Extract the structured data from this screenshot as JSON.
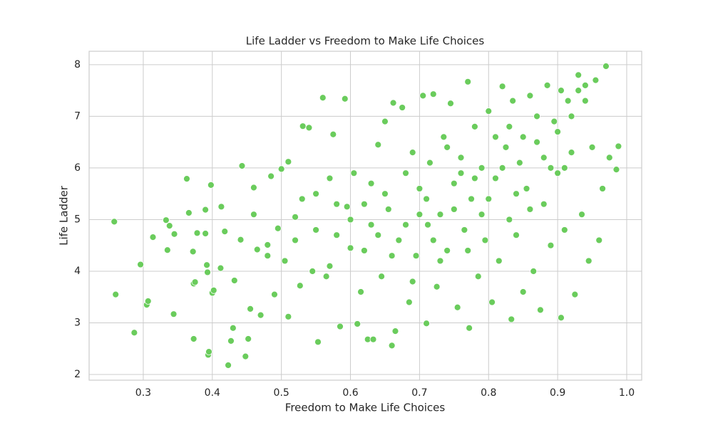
{
  "chart_data": {
    "type": "scatter",
    "title": "Life Ladder vs Freedom to Make Life Choices",
    "x_label": "Freedom to Make Life Choices",
    "y_label": "Life Ladder",
    "color": "#6acc5c",
    "grid": true,
    "xlim": [
      0.2216,
      1.0217
    ],
    "ylim": [
      1.89,
      8.26
    ],
    "xticks": [
      0.3,
      0.4,
      0.5,
      0.6,
      0.7,
      0.8,
      0.9,
      {
        "value": 1,
        "label": "1.0"
      }
    ],
    "yticks": [
      2,
      3,
      4,
      5,
      6,
      7,
      8
    ],
    "x": [
      0.258,
      0.26,
      0.287,
      0.296,
      0.305,
      0.307,
      0.314,
      0.333,
      0.335,
      0.338,
      0.344,
      0.345,
      0.363,
      0.366,
      0.372,
      0.373,
      0.373,
      0.375,
      0.378,
      0.39,
      0.39,
      0.392,
      0.393,
      0.394,
      0.395,
      0.398,
      0.4,
      0.402,
      0.412,
      0.413,
      0.418,
      0.423,
      0.427,
      0.43,
      0.432,
      0.441,
      0.443,
      0.448,
      0.452,
      0.455,
      0.46,
      0.465,
      0.47,
      0.48,
      0.485,
      0.49,
      0.495,
      0.5,
      0.505,
      0.51,
      0.51,
      0.52,
      0.527,
      0.531,
      0.54,
      0.545,
      0.55,
      0.553,
      0.56,
      0.565,
      0.57,
      0.575,
      0.58,
      0.585,
      0.592,
      0.595,
      0.6,
      0.605,
      0.61,
      0.615,
      0.62,
      0.625,
      0.63,
      0.633,
      0.64,
      0.645,
      0.65,
      0.655,
      0.66,
      0.662,
      0.665,
      0.67,
      0.675,
      0.68,
      0.685,
      0.69,
      0.695,
      0.7,
      0.705,
      0.71,
      0.712,
      0.715,
      0.72,
      0.725,
      0.73,
      0.735,
      0.74,
      0.745,
      0.75,
      0.755,
      0.76,
      0.765,
      0.77,
      0.772,
      0.775,
      0.78,
      0.785,
      0.79,
      0.795,
      0.8,
      0.805,
      0.81,
      0.815,
      0.82,
      0.825,
      0.83,
      0.833,
      0.835,
      0.84,
      0.845,
      0.85,
      0.855,
      0.86,
      0.865,
      0.87,
      0.875,
      0.88,
      0.885,
      0.89,
      0.895,
      0.9,
      0.905,
      0.905,
      0.91,
      0.915,
      0.92,
      0.925,
      0.93,
      0.935,
      0.94,
      0.945,
      0.95,
      0.955,
      0.96,
      0.965,
      0.97,
      0.975,
      0.985,
      0.988,
      0.55,
      0.6,
      0.62,
      0.65,
      0.68,
      0.7,
      0.72,
      0.75,
      0.78,
      0.8,
      0.82,
      0.85,
      0.88,
      0.9,
      0.92,
      0.87,
      0.83,
      0.76,
      0.73,
      0.66,
      0.58,
      0.52,
      0.48,
      0.46,
      0.53,
      0.63,
      0.71,
      0.79,
      0.86,
      0.91,
      0.94,
      0.89,
      0.84,
      0.77,
      0.69,
      0.64,
      0.57,
      0.74,
      0.81,
      0.93
    ],
    "y": [
      4.96,
      3.55,
      2.81,
      4.13,
      3.35,
      3.42,
      4.66,
      4.99,
      4.41,
      4.88,
      3.17,
      4.72,
      5.79,
      5.13,
      4.38,
      3.76,
      2.69,
      3.79,
      4.74,
      5.19,
      4.73,
      4.12,
      3.98,
      2.38,
      2.44,
      5.67,
      3.58,
      3.63,
      4.06,
      5.25,
      4.77,
      2.18,
      2.65,
      2.9,
      3.82,
      4.61,
      6.04,
      2.35,
      2.69,
      3.27,
      5.62,
      4.42,
      3.15,
      4.51,
      5.84,
      3.55,
      4.83,
      5.98,
      4.2,
      3.12,
      6.12,
      5.05,
      3.72,
      6.81,
      6.78,
      4.0,
      5.5,
      2.63,
      7.36,
      3.9,
      5.8,
      6.65,
      4.7,
      2.93,
      7.34,
      5.25,
      4.45,
      5.9,
      2.98,
      3.6,
      5.3,
      2.68,
      4.9,
      2.68,
      6.45,
      3.9,
      6.9,
      5.2,
      2.56,
      7.26,
      2.84,
      4.6,
      7.17,
      5.9,
      3.4,
      6.3,
      4.3,
      5.6,
      7.4,
      2.99,
      4.9,
      6.1,
      7.43,
      3.7,
      5.1,
      6.6,
      4.4,
      7.25,
      5.7,
      3.3,
      6.2,
      4.8,
      7.67,
      2.9,
      5.4,
      6.8,
      3.9,
      6.0,
      4.6,
      7.1,
      3.4,
      5.8,
      4.2,
      7.58,
      6.4,
      5.0,
      3.07,
      7.3,
      4.7,
      6.1,
      3.6,
      5.6,
      7.4,
      4.0,
      6.5,
      3.25,
      5.3,
      7.6,
      4.5,
      6.9,
      5.9,
      3.1,
      7.5,
      4.8,
      7.3,
      6.3,
      3.55,
      7.8,
      5.1,
      7.6,
      4.2,
      6.4,
      7.7,
      4.6,
      5.6,
      7.97,
      6.2,
      5.97,
      6.42,
      4.8,
      5.0,
      4.4,
      5.5,
      4.9,
      5.1,
      4.6,
      5.2,
      5.8,
      5.4,
      6.0,
      6.6,
      6.2,
      6.7,
      7.0,
      7.0,
      6.8,
      5.9,
      4.2,
      4.3,
      5.3,
      4.6,
      4.3,
      5.1,
      5.4,
      5.7,
      5.4,
      5.1,
      5.2,
      6.0,
      7.3,
      6.0,
      5.5,
      4.4,
      3.8,
      4.7,
      4.1,
      6.4,
      6.6,
      7.5
    ]
  }
}
